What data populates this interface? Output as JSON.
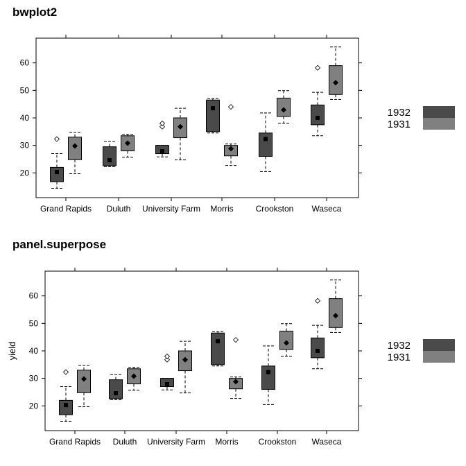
{
  "panels": [
    {
      "title": "bwplot2",
      "ylabel": ""
    },
    {
      "title": "panel.superpose",
      "ylabel": "yield"
    }
  ],
  "colors": {
    "y1932": "#4a4a4a",
    "y1931": "#808080"
  },
  "chart_data": [
    {
      "type": "box",
      "title": "bwplot2",
      "xlabel": "",
      "ylabel": "",
      "yticks": [
        20,
        30,
        40,
        50,
        60
      ],
      "ylim": [
        11,
        69
      ],
      "categories": [
        "Grand Rapids",
        "Duluth",
        "University Farm",
        "Morris",
        "Crookston",
        "Waseca"
      ],
      "legend": {
        "placement": "right",
        "entries": [
          "1932",
          "1931"
        ]
      },
      "series": [
        {
          "name": "1932",
          "marker": "square",
          "boxes": [
            {
              "whisker_low": 14.4,
              "q1": 16.8,
              "median": 20.3,
              "q3": 22.0,
              "whisker_high": 27.0,
              "outliers": [
                32.3
              ]
            },
            {
              "whisker_low": 22.3,
              "q1": 22.6,
              "median": 24.6,
              "q3": 29.5,
              "whisker_high": 31.4,
              "outliers": []
            },
            {
              "whisker_low": 25.8,
              "q1": 27.0,
              "median": 27.9,
              "q3": 30.0,
              "whisker_high": 30.0,
              "outliers": [
                36.8,
                38.0
              ]
            },
            {
              "whisker_low": 34.5,
              "q1": 35.0,
              "median": 43.5,
              "q3": 46.5,
              "whisker_high": 47.0,
              "outliers": []
            },
            {
              "whisker_low": 20.5,
              "q1": 26.0,
              "median": 32.3,
              "q3": 34.5,
              "whisker_high": 41.8,
              "outliers": []
            },
            {
              "whisker_low": 33.5,
              "q1": 37.5,
              "median": 40.0,
              "q3": 44.7,
              "whisker_high": 49.3,
              "outliers": [
                58.2
              ]
            }
          ]
        },
        {
          "name": "1931",
          "marker": "diamond",
          "boxes": [
            {
              "whisker_low": 19.7,
              "q1": 24.8,
              "median": 29.8,
              "q3": 33.0,
              "whisker_high": 34.7,
              "outliers": []
            },
            {
              "whisker_low": 25.7,
              "q1": 28.0,
              "median": 30.8,
              "q3": 33.5,
              "whisker_high": 34.0,
              "outliers": []
            },
            {
              "whisker_low": 24.7,
              "q1": 32.8,
              "median": 36.8,
              "q3": 40.0,
              "whisker_high": 43.5,
              "outliers": []
            },
            {
              "whisker_low": 22.7,
              "q1": 26.2,
              "median": 28.8,
              "q3": 30.0,
              "whisker_high": 30.5,
              "outliers": [
                44.0
              ]
            },
            {
              "whisker_low": 38.0,
              "q1": 40.5,
              "median": 42.9,
              "q3": 47.2,
              "whisker_high": 49.9,
              "outliers": []
            },
            {
              "whisker_low": 46.7,
              "q1": 48.5,
              "median": 52.8,
              "q3": 59.0,
              "whisker_high": 65.8,
              "outliers": []
            }
          ]
        }
      ]
    },
    {
      "type": "box",
      "title": "panel.superpose",
      "xlabel": "",
      "ylabel": "yield",
      "yticks": [
        20,
        30,
        40,
        50,
        60
      ],
      "ylim": [
        11,
        69
      ],
      "categories": [
        "Grand Rapids",
        "Duluth",
        "University Farm",
        "Morris",
        "Crookston",
        "Waseca"
      ],
      "legend": {
        "placement": "right",
        "entries": [
          "1932",
          "1931"
        ]
      },
      "series": [
        {
          "name": "1932",
          "marker": "square",
          "boxes": [
            {
              "whisker_low": 14.4,
              "q1": 16.8,
              "median": 20.3,
              "q3": 22.0,
              "whisker_high": 27.0,
              "outliers": [
                32.3
              ]
            },
            {
              "whisker_low": 22.3,
              "q1": 22.6,
              "median": 24.6,
              "q3": 29.5,
              "whisker_high": 31.4,
              "outliers": []
            },
            {
              "whisker_low": 25.8,
              "q1": 27.0,
              "median": 27.9,
              "q3": 30.0,
              "whisker_high": 30.0,
              "outliers": [
                36.8,
                38.0
              ]
            },
            {
              "whisker_low": 34.5,
              "q1": 35.0,
              "median": 43.5,
              "q3": 46.5,
              "whisker_high": 47.0,
              "outliers": []
            },
            {
              "whisker_low": 20.5,
              "q1": 26.0,
              "median": 32.3,
              "q3": 34.5,
              "whisker_high": 41.8,
              "outliers": []
            },
            {
              "whisker_low": 33.5,
              "q1": 37.5,
              "median": 40.0,
              "q3": 44.7,
              "whisker_high": 49.3,
              "outliers": [
                58.2
              ]
            }
          ]
        },
        {
          "name": "1931",
          "marker": "diamond",
          "boxes": [
            {
              "whisker_low": 19.7,
              "q1": 24.8,
              "median": 29.8,
              "q3": 33.0,
              "whisker_high": 34.7,
              "outliers": []
            },
            {
              "whisker_low": 25.7,
              "q1": 28.0,
              "median": 30.8,
              "q3": 33.5,
              "whisker_high": 34.0,
              "outliers": []
            },
            {
              "whisker_low": 24.7,
              "q1": 32.8,
              "median": 36.8,
              "q3": 40.0,
              "whisker_high": 43.5,
              "outliers": []
            },
            {
              "whisker_low": 22.7,
              "q1": 26.2,
              "median": 28.8,
              "q3": 30.0,
              "whisker_high": 30.5,
              "outliers": [
                44.0
              ]
            },
            {
              "whisker_low": 38.0,
              "q1": 40.5,
              "median": 42.9,
              "q3": 47.2,
              "whisker_high": 49.9,
              "outliers": []
            },
            {
              "whisker_low": 46.7,
              "q1": 48.5,
              "median": 52.8,
              "q3": 59.0,
              "whisker_high": 65.8,
              "outliers": []
            }
          ]
        }
      ]
    }
  ]
}
